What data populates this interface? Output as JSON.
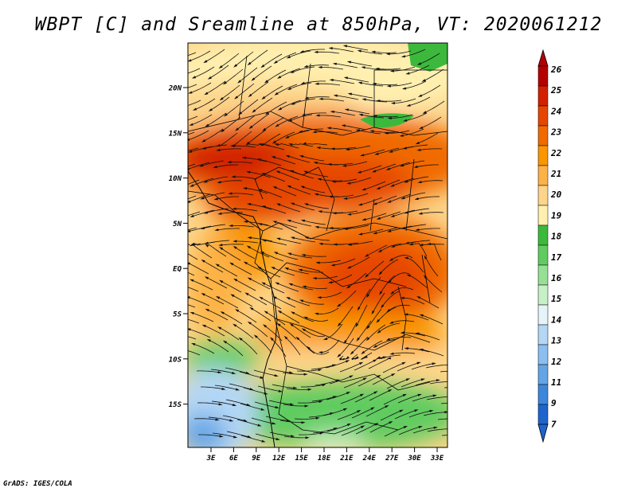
{
  "title": "WBPT [C] and Sreamline at 850hPa, VT: 2020061212",
  "footer": "GrADS: IGES/COLA",
  "map": {
    "lat_labels": [
      "20N",
      "15N",
      "10N",
      "5N",
      "EQ",
      "5S",
      "10S",
      "15S"
    ],
    "lon_labels": [
      "3E",
      "6E",
      "9E",
      "12E",
      "15E",
      "18E",
      "21E",
      "24E",
      "27E",
      "30E",
      "33E"
    ]
  },
  "colorbar": {
    "labels": [
      "26",
      "25",
      "24",
      "23",
      "22",
      "21",
      "20",
      "19",
      "18",
      "17",
      "16",
      "15",
      "14",
      "13",
      "12",
      "11",
      "9",
      "7"
    ],
    "colors": [
      "#b40000",
      "#d22000",
      "#e64600",
      "#f06a00",
      "#fa9600",
      "#fdb245",
      "#fdd58a",
      "#fff0b0",
      "#3cb93c",
      "#60cc60",
      "#96e096",
      "#c8f0c8",
      "#e6f4fa",
      "#b4d7f5",
      "#8cbef0",
      "#64a5e6",
      "#3c87dc",
      "#1e64cd"
    ]
  }
}
